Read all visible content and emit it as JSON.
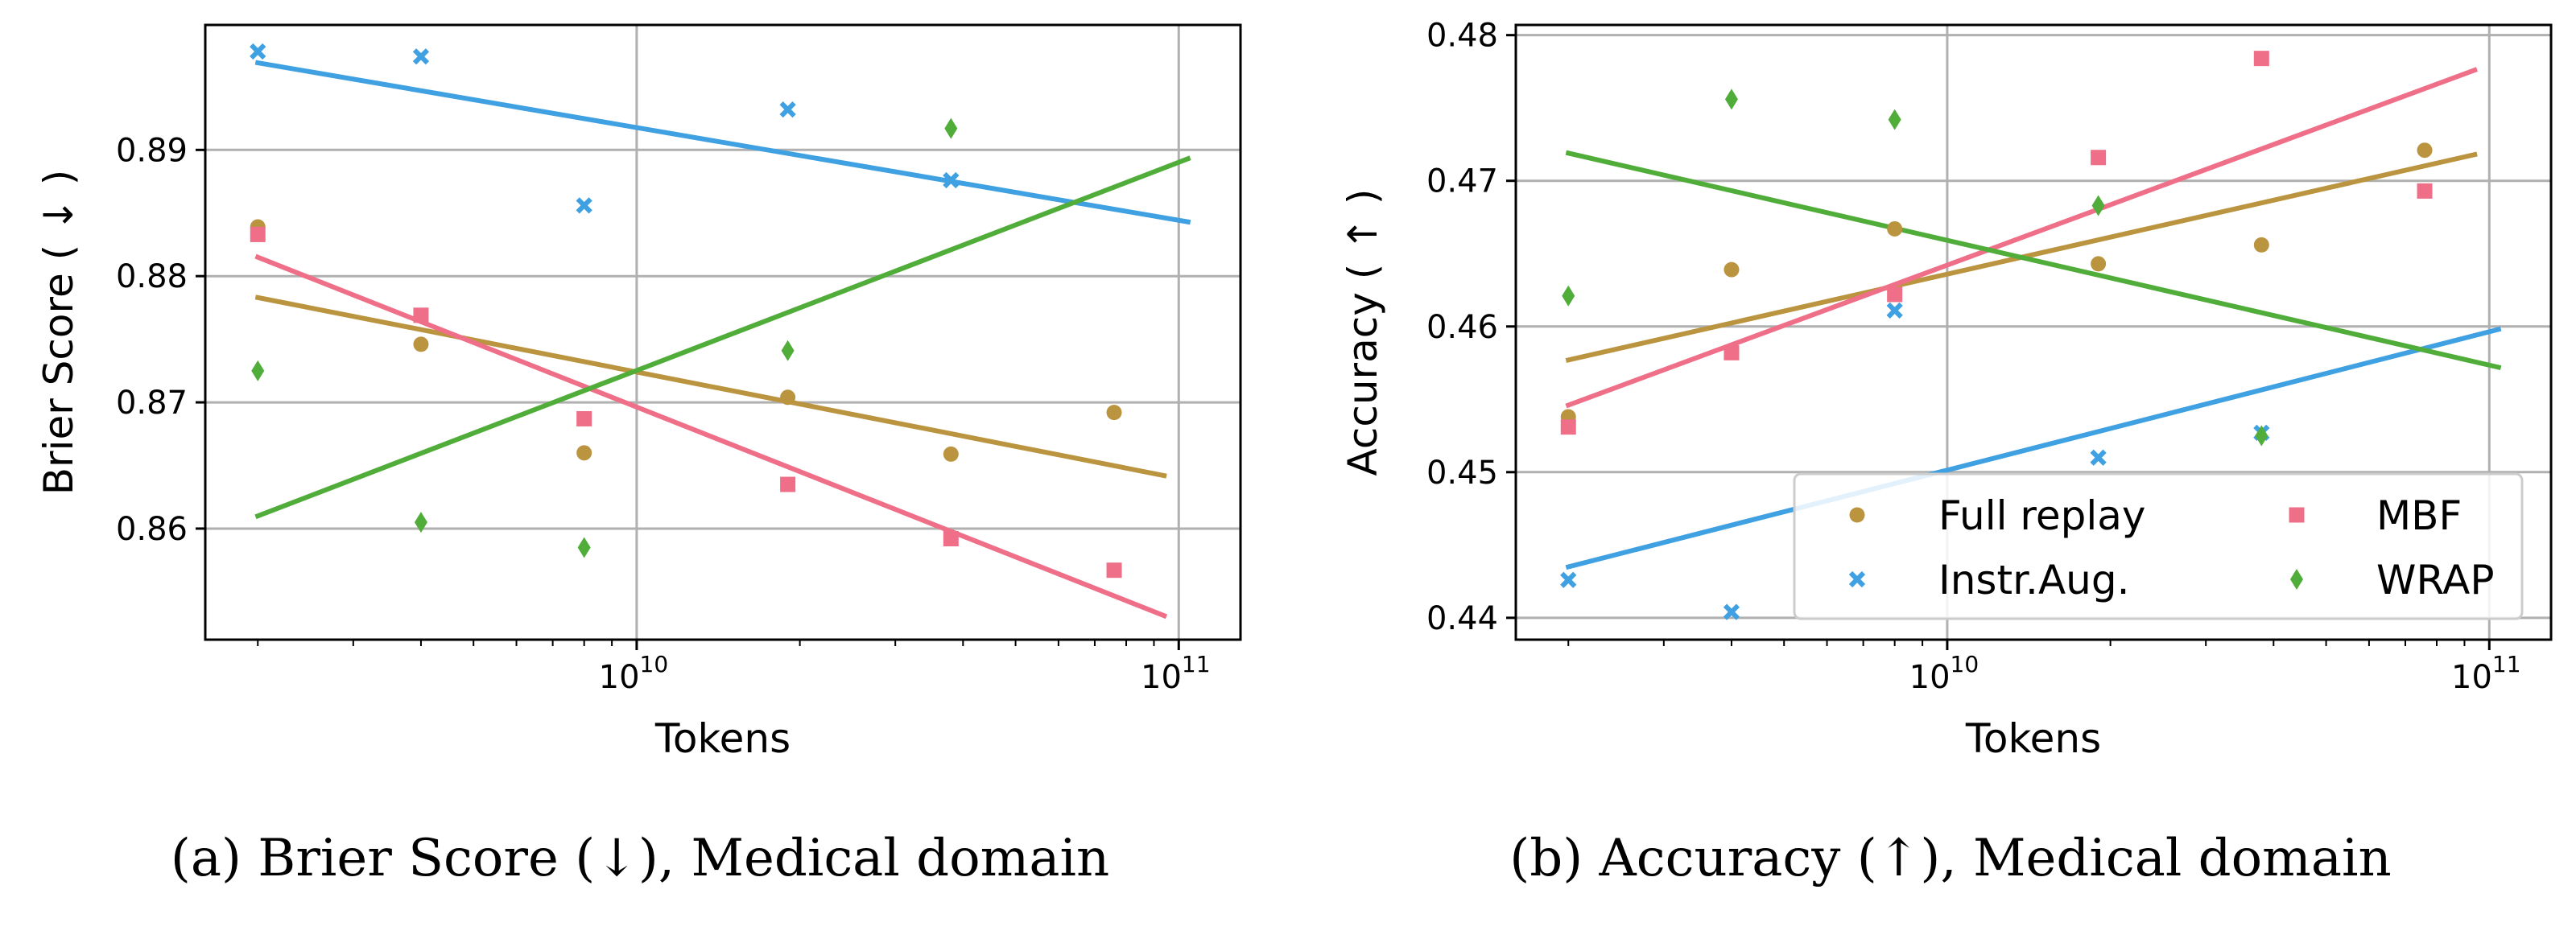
{
  "chart_data": [
    {
      "type": "scatter",
      "title": "",
      "caption": "(a) Brier Score (↓), Medical domain",
      "xlabel": "Tokens",
      "ylabel": "Brier Score ( ↓ )",
      "xscale": "log",
      "xlim": [
        1600000000.0,
        130000000000.0
      ],
      "ylim": [
        0.8512,
        0.8999
      ],
      "yticks": [
        0.86,
        0.87,
        0.88,
        0.89
      ],
      "ytick_labels": [
        "0.86",
        "0.87",
        "0.88",
        "0.89"
      ],
      "xticks": [
        10000000000.0,
        100000000000.0
      ],
      "xtick_labels": [
        {
          "base": "10",
          "exp": "10"
        },
        {
          "base": "10",
          "exp": "11"
        }
      ],
      "grid": true,
      "legend": null,
      "series": [
        {
          "name": "Full replay",
          "color": "#bb9440",
          "marker": "circle",
          "x": [
            2000000000.0,
            4000000000.0,
            8000000000.0,
            19000000000.0,
            38000000000.0,
            76000000000.0
          ],
          "y": [
            0.8839,
            0.8746,
            0.866,
            0.8704,
            0.8659,
            0.8692
          ],
          "fit": {
            "x": [
              2000000000.0,
              94000000000.0
            ],
            "y": [
              0.8783,
              0.8642
            ]
          }
        },
        {
          "name": "Instr.Aug.",
          "color": "#3fa0e2",
          "marker": "x",
          "x": [
            2000000000.0,
            4000000000.0,
            8000000000.0,
            19000000000.0,
            38000000000.0
          ],
          "y": [
            0.8978,
            0.8974,
            0.8856,
            0.8932,
            0.8876
          ],
          "fit": {
            "x": [
              2000000000.0,
              104000000000.0
            ],
            "y": [
              0.8969,
              0.8843
            ]
          }
        },
        {
          "name": "MBF",
          "color": "#ef6f88",
          "marker": "square",
          "x": [
            2000000000.0,
            4000000000.0,
            8000000000.0,
            19000000000.0,
            38000000000.0,
            76000000000.0
          ],
          "y": [
            0.8833,
            0.8769,
            0.8687,
            0.8635,
            0.8592,
            0.8567
          ],
          "fit": {
            "x": [
              2000000000.0,
              94000000000.0
            ],
            "y": [
              0.8815,
              0.8531
            ]
          }
        },
        {
          "name": "WRAP",
          "color": "#50ad3a",
          "marker": "diamond",
          "x": [
            2000000000.0,
            4000000000.0,
            8000000000.0,
            19000000000.0,
            38000000000.0
          ],
          "y": [
            0.8725,
            0.8605,
            0.8585,
            0.8741,
            0.8917
          ],
          "fit": {
            "x": [
              2000000000.0,
              104000000000.0
            ],
            "y": [
              0.861,
              0.8893
            ]
          }
        }
      ]
    },
    {
      "type": "scatter",
      "title": "",
      "caption": "(b) Accuracy (↑), Medical domain",
      "xlabel": "Tokens",
      "ylabel": "Accuracy ( ↑ )",
      "xscale": "log",
      "xlim": [
        1600000000.0,
        130000000000.0
      ],
      "ylim": [
        0.4385,
        0.4807
      ],
      "yticks": [
        0.44,
        0.45,
        0.46,
        0.47,
        0.48
      ],
      "ytick_labels": [
        "0.44",
        "0.45",
        "0.46",
        "0.47",
        "0.48"
      ],
      "xticks": [
        10000000000.0,
        100000000000.0
      ],
      "xtick_labels": [
        {
          "base": "10",
          "exp": "10"
        },
        {
          "base": "10",
          "exp": "11"
        }
      ],
      "grid": true,
      "legend": {
        "placement": "lower-right",
        "columns": 2
      },
      "series": [
        {
          "name": "Full replay",
          "color": "#bb9440",
          "marker": "circle",
          "x": [
            2000000000.0,
            4000000000.0,
            8000000000.0,
            19000000000.0,
            38000000000.0,
            76000000000.0
          ],
          "y": [
            0.4538,
            0.4639,
            0.4667,
            0.4643,
            0.4656,
            0.4721
          ],
          "fit": {
            "x": [
              2000000000.0,
              94000000000.0
            ],
            "y": [
              0.4577,
              0.4718
            ]
          }
        },
        {
          "name": "Instr.Aug.",
          "color": "#3fa0e2",
          "marker": "x",
          "x": [
            2000000000.0,
            4000000000.0,
            8000000000.0,
            19000000000.0,
            38000000000.0
          ],
          "y": [
            0.4426,
            0.4404,
            0.4611,
            0.451,
            0.4527
          ],
          "fit": {
            "x": [
              2000000000.0,
              104000000000.0
            ],
            "y": [
              0.4435,
              0.4598
            ]
          }
        },
        {
          "name": "MBF",
          "color": "#ef6f88",
          "marker": "square",
          "x": [
            2000000000.0,
            4000000000.0,
            8000000000.0,
            19000000000.0,
            38000000000.0,
            76000000000.0
          ],
          "y": [
            0.4531,
            0.4582,
            0.4622,
            0.4716,
            0.4784,
            0.4693
          ],
          "fit": {
            "x": [
              2000000000.0,
              94000000000.0
            ],
            "y": [
              0.4546,
              0.4776
            ]
          }
        },
        {
          "name": "WRAP",
          "color": "#50ad3a",
          "marker": "diamond",
          "x": [
            2000000000.0,
            4000000000.0,
            8000000000.0,
            19000000000.0,
            38000000000.0
          ],
          "y": [
            0.4621,
            0.4756,
            0.4742,
            0.4683,
            0.4525
          ],
          "fit": {
            "x": [
              2000000000.0,
              104000000000.0
            ],
            "y": [
              0.4719,
              0.4572
            ]
          }
        }
      ]
    }
  ]
}
